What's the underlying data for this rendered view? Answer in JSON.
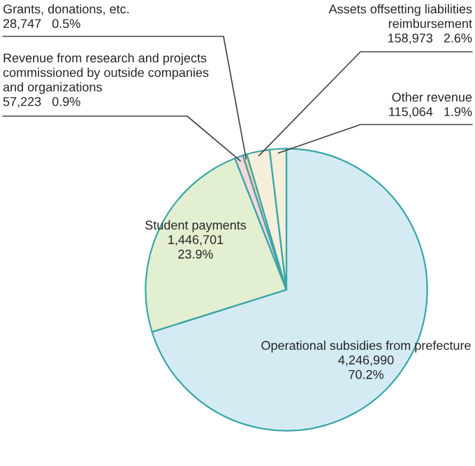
{
  "chart_data": {
    "type": "pie",
    "categories": [
      "Operational subsidies from prefecture",
      "Student payments",
      "Revenue from research and projects\ncommissioned by outside companies\nand organizations",
      "Grants, donations, etc.",
      "Assets offsetting liabilities\nreimbursement",
      "Other revenue"
    ],
    "values": [
      4246990,
      1446701,
      57223,
      28747,
      158973,
      115064
    ],
    "value_labels": [
      "4,246,990 70.2%",
      "1,446,701 23.9%",
      "57,223 0.9%",
      "28,747 0.5%",
      "158,973 2.6%",
      "115,064 1.9%"
    ],
    "colors": [
      "#d4ebf3",
      "#e3efd1",
      "#f8d6dc",
      "#f6d2a6",
      "#f5efdc",
      "#f5efdc"
    ]
  }
}
